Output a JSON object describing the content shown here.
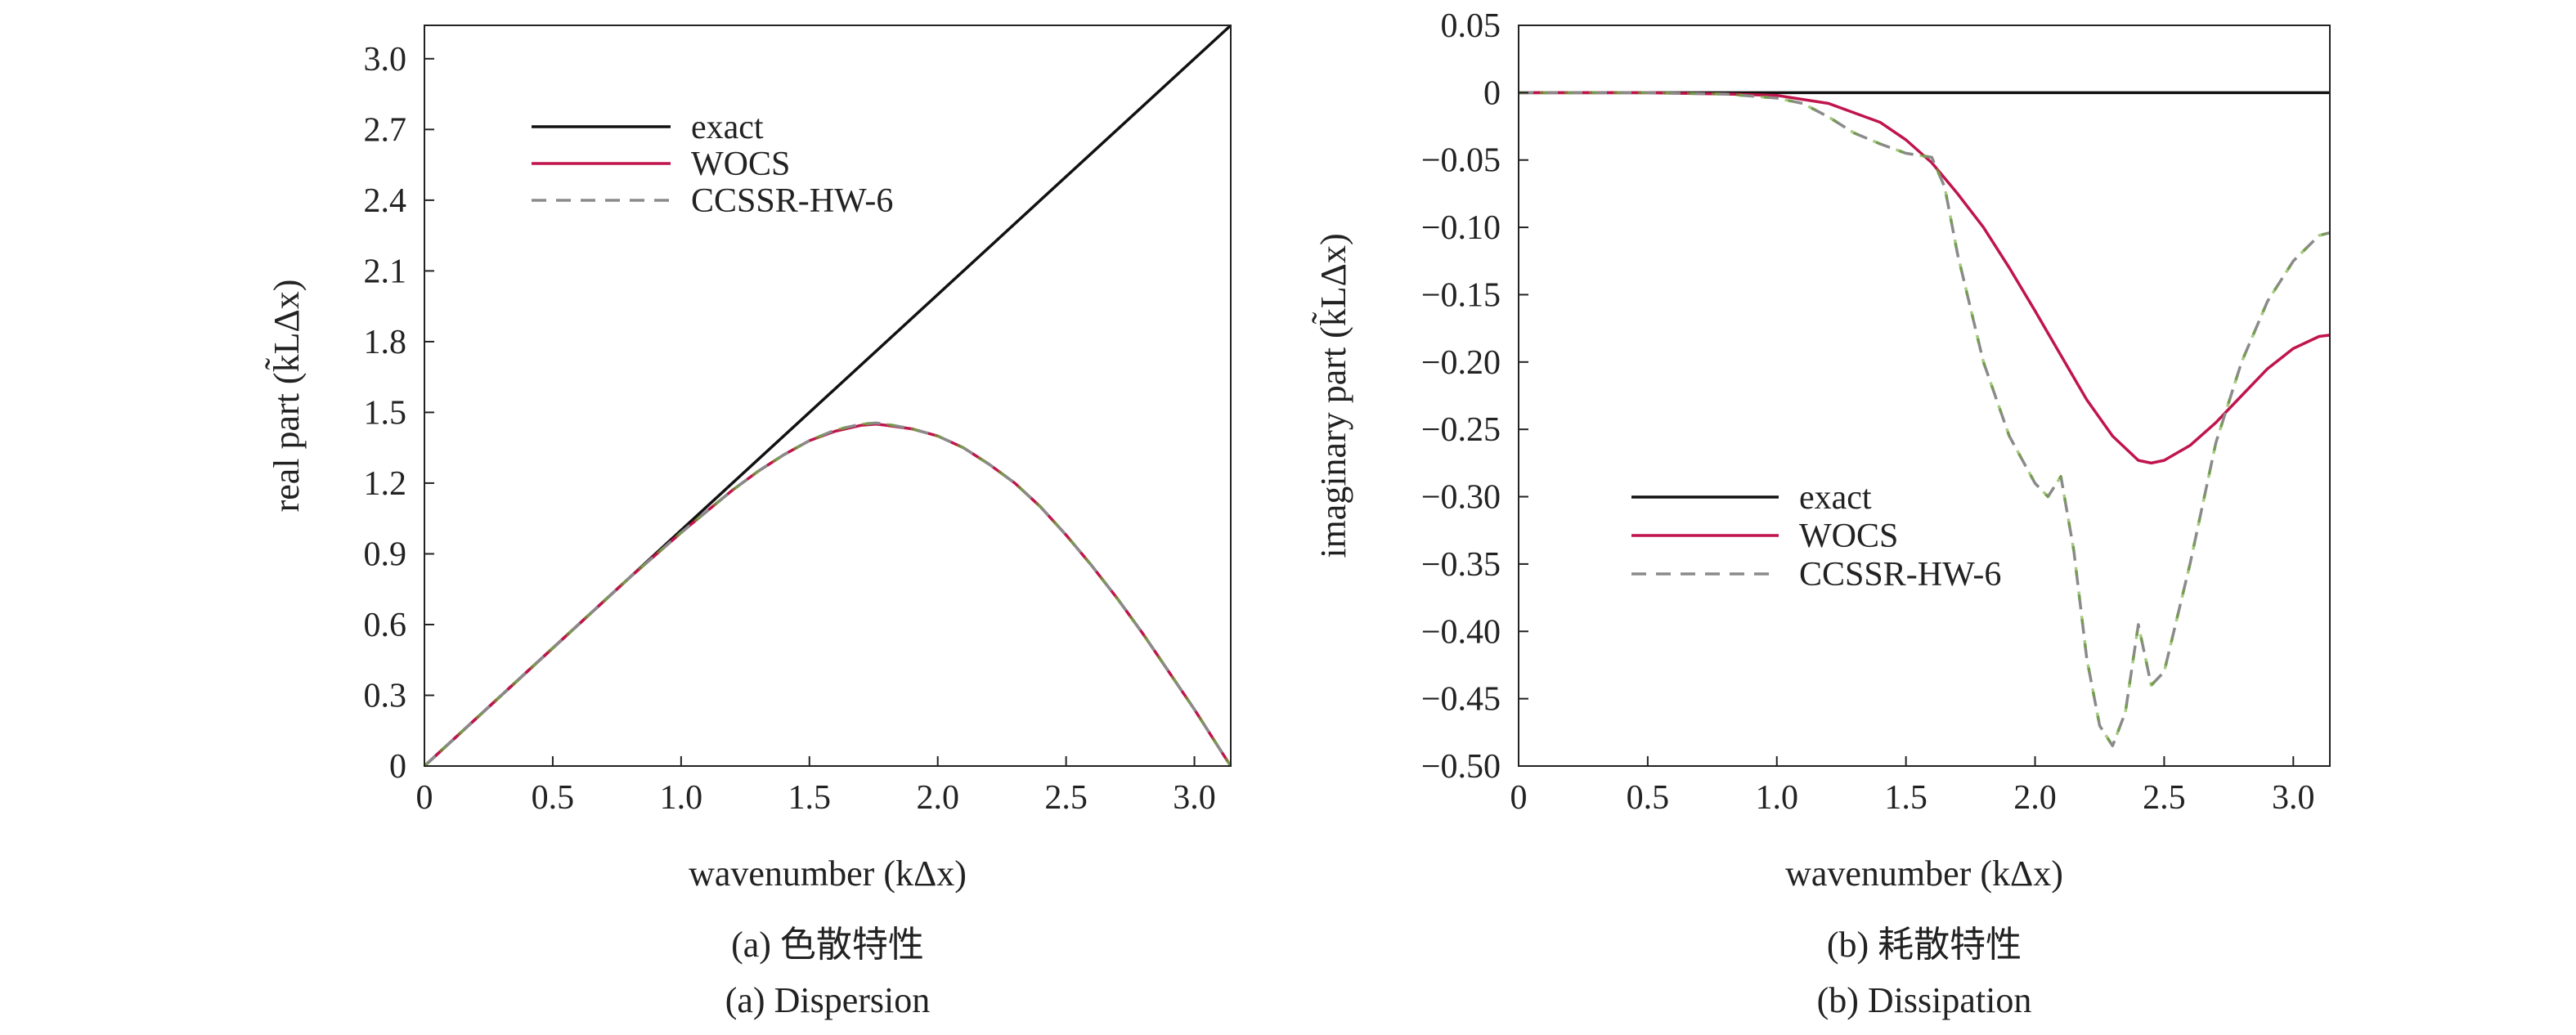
{
  "figure": {
    "caption_left_cn": "(a) 色散特性",
    "caption_left_en": "(a) Dispersion",
    "caption_right_cn": "(b) 耗散特性",
    "caption_right_en": "(b) Dissipation"
  },
  "chart_data": [
    {
      "type": "line",
      "title": "",
      "xlabel": "wavenumber (kΔx)",
      "ylabel": "real part (k̃LΔx)",
      "xlim": [
        0,
        3.14159
      ],
      "ylim": [
        0,
        3.14159
      ],
      "xticks": [
        "0",
        "0.5",
        "1.0",
        "1.5",
        "2.0",
        "2.5",
        "3.0"
      ],
      "xtick_values": [
        0,
        0.5,
        1.0,
        1.5,
        2.0,
        2.5,
        3.0
      ],
      "yticks": [
        "0",
        "0.3",
        "0.6",
        "0.9",
        "1.2",
        "1.5",
        "1.8",
        "2.1",
        "2.4",
        "2.7",
        "3.0"
      ],
      "ytick_values": [
        0,
        0.3,
        0.6,
        0.9,
        1.2,
        1.5,
        1.8,
        2.1,
        2.4,
        2.7,
        3.0
      ],
      "legend_position": "top-left",
      "grid": false,
      "series": [
        {
          "name": "exact",
          "color": "#111111",
          "dash": "solid",
          "x": [
            0,
            3.14159
          ],
          "y": [
            0,
            3.14159
          ]
        },
        {
          "name": "WOCS",
          "color": "#c0144c",
          "dash": "solid",
          "x": [
            0,
            0.2,
            0.4,
            0.6,
            0.8,
            1.0,
            1.1,
            1.2,
            1.3,
            1.4,
            1.5,
            1.6,
            1.7,
            1.76,
            1.8,
            1.9,
            2.0,
            2.1,
            2.2,
            2.3,
            2.4,
            2.5,
            2.6,
            2.7,
            2.8,
            2.9,
            3.0,
            3.1,
            3.14159
          ],
          "y": [
            0,
            0.2,
            0.4,
            0.6,
            0.8,
            0.99,
            1.08,
            1.17,
            1.25,
            1.32,
            1.38,
            1.42,
            1.445,
            1.45,
            1.445,
            1.43,
            1.4,
            1.35,
            1.28,
            1.2,
            1.1,
            0.98,
            0.85,
            0.71,
            0.56,
            0.4,
            0.24,
            0.07,
            0
          ]
        },
        {
          "name": "CCSSR-HW-6",
          "color": "#8a8a8a",
          "accent_color": "#6aa62f",
          "dash": "dashed",
          "x": [
            0,
            0.2,
            0.4,
            0.6,
            0.8,
            1.0,
            1.1,
            1.2,
            1.3,
            1.4,
            1.5,
            1.6,
            1.7,
            1.76,
            1.8,
            1.9,
            2.0,
            2.1,
            2.2,
            2.3,
            2.4,
            2.5,
            2.6,
            2.7,
            2.8,
            2.9,
            3.0,
            3.1,
            3.14159
          ],
          "y": [
            0,
            0.2,
            0.4,
            0.6,
            0.8,
            0.99,
            1.08,
            1.17,
            1.25,
            1.32,
            1.38,
            1.425,
            1.45,
            1.455,
            1.45,
            1.43,
            1.4,
            1.35,
            1.28,
            1.2,
            1.1,
            0.98,
            0.85,
            0.71,
            0.56,
            0.4,
            0.24,
            0.07,
            0
          ]
        }
      ]
    },
    {
      "type": "line",
      "title": "",
      "xlabel": "wavenumber (kΔx)",
      "ylabel": "imaginary part (k̃LΔx)",
      "xlim": [
        0,
        3.14159
      ],
      "ylim": [
        -0.5,
        0.05
      ],
      "xticks": [
        "0",
        "0.5",
        "1.0",
        "1.5",
        "2.0",
        "2.5",
        "3.0"
      ],
      "xtick_values": [
        0,
        0.5,
        1.0,
        1.5,
        2.0,
        2.5,
        3.0
      ],
      "yticks": [
        "0.05",
        "0",
        "−0.05",
        "−0.10",
        "−0.15",
        "−0.20",
        "−0.25",
        "−0.30",
        "−0.35",
        "−0.40",
        "−0.45",
        "−0.50"
      ],
      "ytick_values": [
        0.05,
        0,
        -0.05,
        -0.1,
        -0.15,
        -0.2,
        -0.25,
        -0.3,
        -0.35,
        -0.4,
        -0.45,
        -0.5
      ],
      "legend_position": "bottom-left",
      "grid": false,
      "series": [
        {
          "name": "exact",
          "color": "#111111",
          "dash": "solid",
          "x": [
            0,
            3.14159
          ],
          "y": [
            0,
            0
          ]
        },
        {
          "name": "WOCS",
          "color": "#c0144c",
          "dash": "solid",
          "x": [
            0,
            0.5,
            0.8,
            1.0,
            1.2,
            1.4,
            1.5,
            1.6,
            1.7,
            1.8,
            1.9,
            2.0,
            2.1,
            2.2,
            2.3,
            2.4,
            2.45,
            2.5,
            2.6,
            2.7,
            2.8,
            2.9,
            3.0,
            3.1,
            3.14159
          ],
          "y": [
            0,
            0,
            -0.001,
            -0.002,
            -0.008,
            -0.022,
            -0.035,
            -0.052,
            -0.075,
            -0.1,
            -0.13,
            -0.162,
            -0.195,
            -0.228,
            -0.255,
            -0.273,
            -0.275,
            -0.273,
            -0.262,
            -0.245,
            -0.225,
            -0.205,
            -0.19,
            -0.181,
            -0.18
          ]
        },
        {
          "name": "CCSSR-HW-6",
          "color": "#8a8a8a",
          "accent_color": "#6aa62f",
          "dash": "dashed",
          "x": [
            0,
            0.5,
            0.8,
            1.0,
            1.1,
            1.2,
            1.3,
            1.4,
            1.5,
            1.6,
            1.65,
            1.7,
            1.8,
            1.9,
            2.0,
            2.05,
            2.1,
            2.15,
            2.2,
            2.25,
            2.3,
            2.35,
            2.4,
            2.45,
            2.5,
            2.6,
            2.7,
            2.8,
            2.9,
            3.0,
            3.1,
            3.14159
          ],
          "y": [
            0,
            0,
            -0.001,
            -0.004,
            -0.008,
            -0.018,
            -0.03,
            -0.038,
            -0.045,
            -0.048,
            -0.07,
            -0.12,
            -0.2,
            -0.255,
            -0.29,
            -0.3,
            -0.285,
            -0.34,
            -0.42,
            -0.47,
            -0.485,
            -0.46,
            -0.395,
            -0.44,
            -0.43,
            -0.35,
            -0.26,
            -0.2,
            -0.155,
            -0.125,
            -0.106,
            -0.104
          ]
        }
      ]
    }
  ]
}
